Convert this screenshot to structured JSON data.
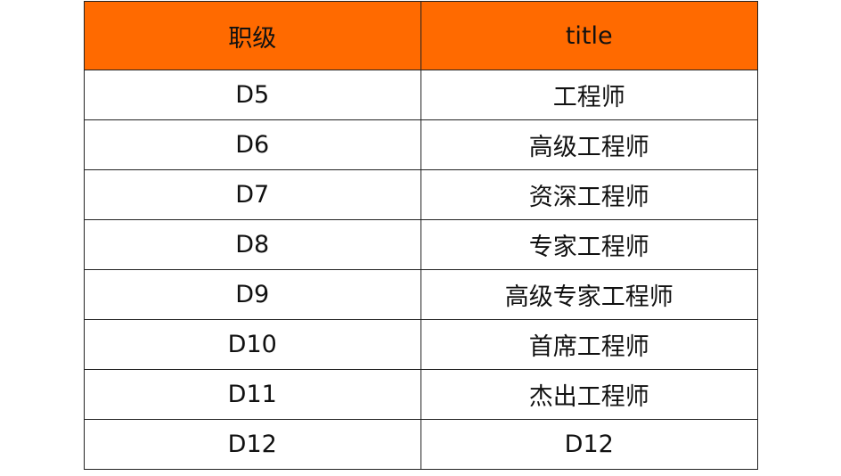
{
  "colors": {
    "header_background": "#FF6A00"
  },
  "table": {
    "headers": [
      "职级",
      "title"
    ],
    "rows": [
      [
        "D5",
        "工程师"
      ],
      [
        "D6",
        "高级工程师"
      ],
      [
        "D7",
        "资深工程师"
      ],
      [
        "D8",
        "专家工程师"
      ],
      [
        "D9",
        "高级专家工程师"
      ],
      [
        "D10",
        "首席工程师"
      ],
      [
        "D11",
        "杰出工程师"
      ],
      [
        "D12",
        "D12"
      ]
    ]
  }
}
